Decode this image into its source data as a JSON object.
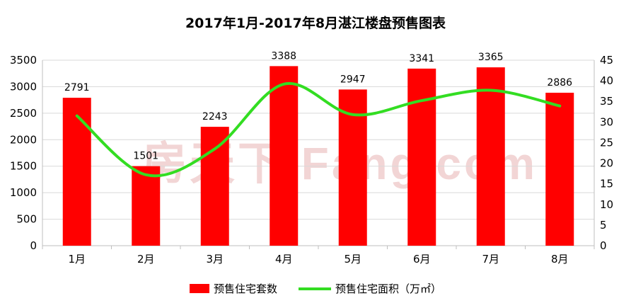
{
  "chart_data": {
    "type": "bar",
    "title": "2017年1月-2017年8月湛江楼盘预售图表",
    "categories": [
      "1月",
      "2月",
      "3月",
      "4月",
      "5月",
      "6月",
      "7月",
      "8月"
    ],
    "series": [
      {
        "name": "预售住宅套数",
        "type": "bar",
        "axis": "left",
        "color": "#ff0000",
        "values": [
          2791,
          1501,
          2243,
          3388,
          2947,
          3341,
          3365,
          2886
        ]
      },
      {
        "name": "预售住宅面积（万㎡）",
        "type": "line",
        "axis": "right",
        "color": "#33dd22",
        "values": [
          31.5,
          17.2,
          23.5,
          39.2,
          31.8,
          35.2,
          37.7,
          33.9
        ]
      }
    ],
    "ylim_left": [
      0,
      3500
    ],
    "yticks_left": [
      "0",
      "500",
      "1000",
      "1500",
      "2000",
      "2500",
      "3000",
      "3500"
    ],
    "ylim_right": [
      0,
      45
    ],
    "yticks_right": [
      "0",
      "5",
      "10",
      "15",
      "20",
      "25",
      "30",
      "35",
      "40",
      "45"
    ],
    "grid": true,
    "legend_position": "bottom"
  },
  "watermark": "房天下 Fang.com"
}
